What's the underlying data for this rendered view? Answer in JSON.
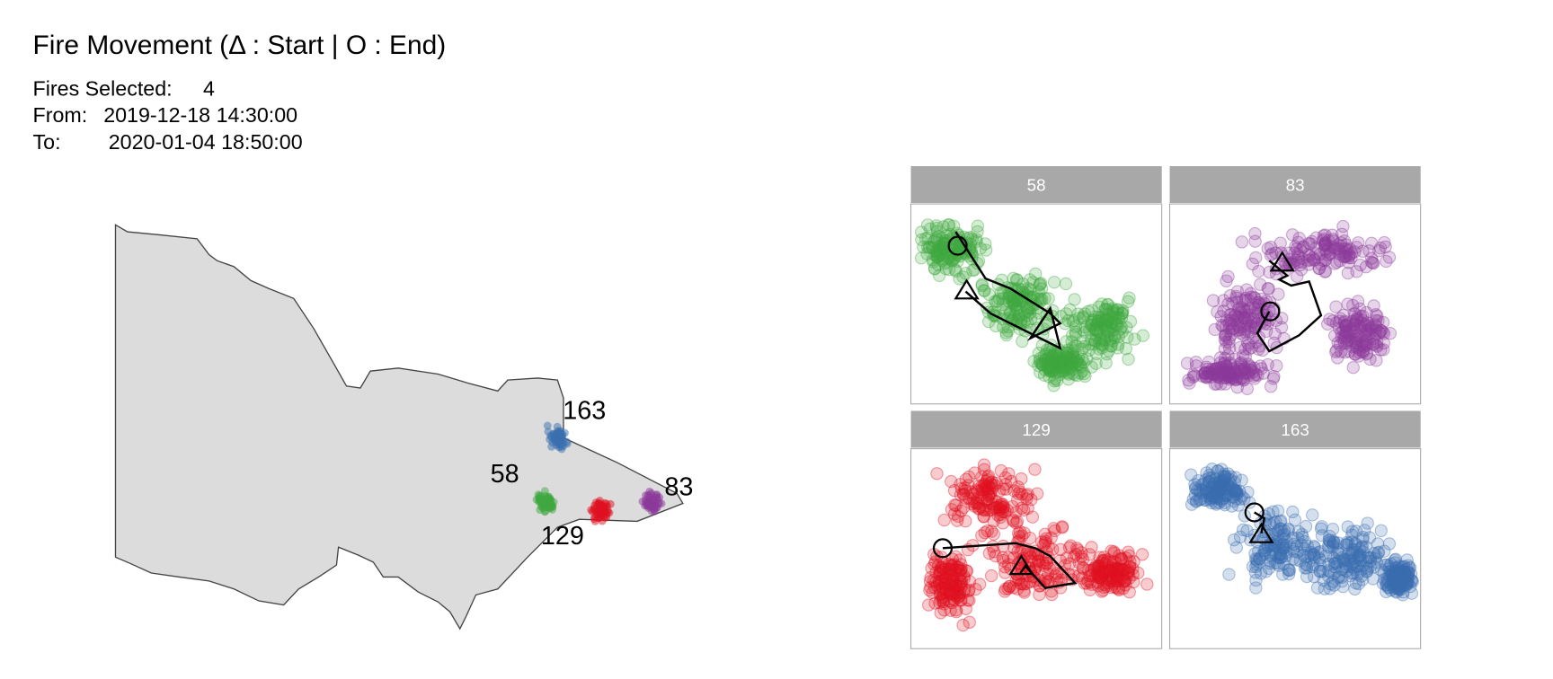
{
  "header": {
    "title": "Fire Movement (Δ : Start | O : End)",
    "lines": [
      {
        "label": "Fires Selected:",
        "value": "4"
      },
      {
        "label": "From:",
        "value": "2019-12-18 14:30:00"
      },
      {
        "label": "To:",
        "value": "2020-01-04 18:50:00"
      }
    ]
  },
  "map": {
    "fires": [
      {
        "label": "163",
        "color": "#3a6fb0"
      },
      {
        "label": "58",
        "color": "#3fa83f"
      },
      {
        "label": "129",
        "color": "#e01020"
      },
      {
        "label": "83",
        "color": "#8b3a9a"
      }
    ]
  },
  "panels": [
    {
      "label": "58",
      "color": "#3fa83f"
    },
    {
      "label": "83",
      "color": "#8b3a9a"
    },
    {
      "label": "129",
      "color": "#e01020"
    },
    {
      "label": "163",
      "color": "#3a6fb0"
    }
  ]
}
